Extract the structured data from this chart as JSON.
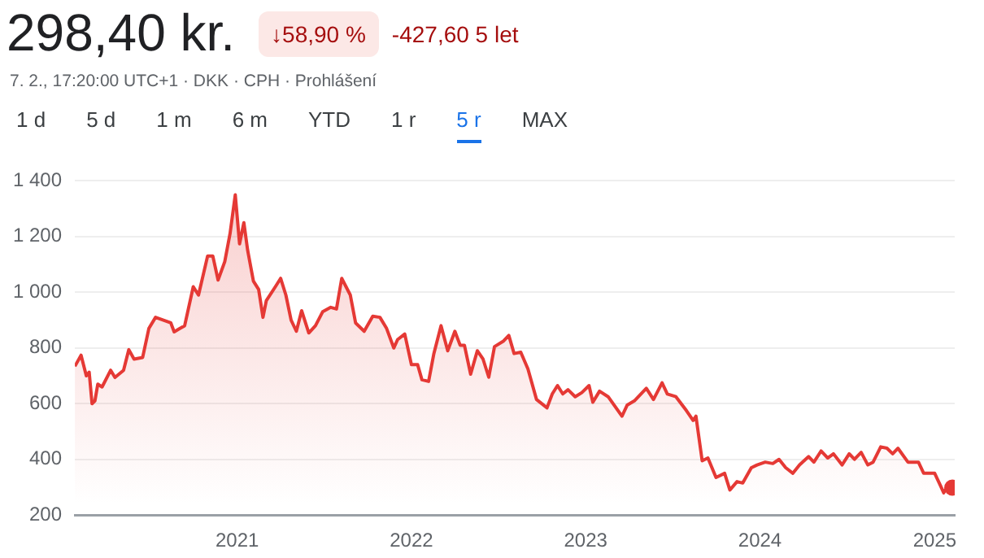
{
  "chart_data": {
    "type": "area",
    "title": "298,40 kr.",
    "subtitle": "7. 2., 17:20:00 UTC+1 · DKK · CPH · Prohlášení",
    "annotations": [
      "↓58,90 %",
      "-427,60 5 let",
      "1 d",
      "5 d",
      "1 m",
      "6 m",
      "YTD",
      "1 r",
      "5 r",
      "MAX"
    ],
    "x": [
      "2020-01-27",
      "2020-02-09",
      "2020-02-20",
      "2020-02-26",
      "2020-03-03",
      "2020-03-09",
      "2020-03-15",
      "2020-03-24",
      "2020-04-11",
      "2020-04-20",
      "2020-05-08",
      "2020-05-19",
      "2020-05-30",
      "2020-06-17",
      "2020-06-30",
      "2020-07-14",
      "2020-08-15",
      "2020-08-22",
      "2020-09-03",
      "2020-09-13",
      "2020-10-01",
      "2020-10-12",
      "2020-10-31",
      "2020-11-11",
      "2020-11-22",
      "2020-12-06",
      "2020-12-17",
      "2020-12-28",
      "2021-01-06",
      "2021-01-15",
      "2021-01-23",
      "2021-02-04",
      "2021-02-15",
      "2021-02-24",
      "2021-03-03",
      "2021-03-22",
      "2021-04-02",
      "2021-04-13",
      "2021-04-24",
      "2021-05-05",
      "2021-05-16",
      "2021-05-31",
      "2021-06-14",
      "2021-06-29",
      "2021-07-16",
      "2021-07-28",
      "2021-08-08",
      "2021-08-26",
      "2021-09-06",
      "2021-09-24",
      "2021-10-12",
      "2021-10-27",
      "2021-11-10",
      "2021-11-25",
      "2021-12-03",
      "2021-12-18",
      "2022-01-01",
      "2022-01-14",
      "2022-01-23",
      "2022-02-06",
      "2022-02-17",
      "2022-03-04",
      "2022-03-18",
      "2022-04-02",
      "2022-04-13",
      "2022-04-22",
      "2022-05-05",
      "2022-05-19",
      "2022-05-31",
      "2022-06-12",
      "2022-06-24",
      "2022-07-13",
      "2022-07-24",
      "2022-08-04",
      "2022-08-18",
      "2022-09-02",
      "2022-09-20",
      "2022-10-12",
      "2022-10-23",
      "2022-11-03",
      "2022-11-14",
      "2022-11-25",
      "2022-12-10",
      "2022-12-24",
      "2023-01-08",
      "2023-01-16",
      "2023-01-30",
      "2023-02-17",
      "2023-03-18",
      "2023-03-29",
      "2023-04-13",
      "2023-05-08",
      "2023-05-23",
      "2023-06-10",
      "2023-06-21",
      "2023-07-09",
      "2023-07-31",
      "2023-08-14",
      "2023-08-20",
      "2023-09-02",
      "2023-09-14",
      "2023-10-01",
      "2023-10-19",
      "2023-10-30",
      "2023-11-14",
      "2023-11-26",
      "2023-12-14",
      "2023-12-26",
      "2024-01-12",
      "2024-01-28",
      "2024-02-10",
      "2024-02-24",
      "2024-03-10",
      "2024-03-24",
      "2024-04-12",
      "2024-04-23",
      "2024-05-08",
      "2024-05-22",
      "2024-06-03",
      "2024-06-21",
      "2024-07-06",
      "2024-07-17",
      "2024-07-31",
      "2024-08-14",
      "2024-08-25",
      "2024-09-10",
      "2024-09-23",
      "2024-10-05",
      "2024-10-16",
      "2024-11-06",
      "2024-11-28",
      "2024-12-09",
      "2025-01-01",
      "2025-01-12",
      "2025-01-20",
      "2025-01-27",
      "2025-02-07"
    ],
    "series": [
      {
        "color": "#e53935",
        "values": [
          734,
          774,
          700,
          713,
          600,
          610,
          670,
          660,
          720,
          694,
          720,
          794,
          760,
          766,
          870,
          910,
          890,
          858,
          870,
          880,
          1020,
          990,
          1130,
          1130,
          1044,
          1110,
          1210,
          1350,
          1174,
          1250,
          1150,
          1040,
          1010,
          910,
          970,
          1020,
          1050,
          990,
          900,
          860,
          934,
          854,
          880,
          930,
          946,
          940,
          1050,
          990,
          890,
          860,
          914,
          910,
          870,
          800,
          830,
          850,
          740,
          740,
          686,
          680,
          780,
          880,
          790,
          860,
          810,
          810,
          706,
          790,
          760,
          695,
          805,
          825,
          845,
          780,
          785,
          725,
          615,
          585,
          635,
          665,
          635,
          650,
          625,
          640,
          665,
          605,
          645,
          625,
          555,
          595,
          610,
          655,
          615,
          675,
          635,
          625,
          575,
          540,
          555,
          395,
          405,
          335,
          350,
          290,
          320,
          315,
          370,
          380,
          390,
          385,
          400,
          370,
          350,
          380,
          410,
          390,
          430,
          405,
          420,
          380,
          420,
          400,
          425,
          380,
          390,
          445,
          440,
          420,
          440,
          390,
          390,
          350,
          350,
          310,
          280,
          300,
          298.4
        ]
      }
    ],
    "xlim": [
      "2020-01-27",
      "2025-02-12"
    ],
    "xticks": [
      {
        "value": "2021-01-01",
        "label": "2021"
      },
      {
        "value": "2022-01-01",
        "label": "2022"
      },
      {
        "value": "2023-01-01",
        "label": "2023"
      },
      {
        "value": "2024-01-01",
        "label": "2024"
      },
      {
        "value": "2025-01-01",
        "label": "2025"
      }
    ],
    "ylim": [
      200,
      1400
    ],
    "yticks": [
      200,
      400,
      600,
      800,
      {
        "value": 1000,
        "label": "1 000"
      },
      {
        "value": 1200,
        "label": "1 200"
      },
      {
        "value": 1400,
        "label": "1 400"
      }
    ],
    "grid": "y",
    "legend": false
  }
}
